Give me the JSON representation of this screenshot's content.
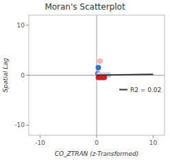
{
  "chart_data": {
    "type": "scatter",
    "title": "Moran's Scatterplot",
    "x_label": "CO_ZTRAN (z-Transformed)",
    "y_label": "Spatial Lag",
    "xlim": [
      -12,
      12
    ],
    "ylim": [
      -12,
      12
    ],
    "xticks": [
      -10,
      0,
      10
    ],
    "yticks": [
      -10,
      0,
      10
    ],
    "legend": "right",
    "reference_lines": {
      "x": 0,
      "y": 0
    },
    "series": [
      {
        "type": "scatter",
        "x": [
          0.6,
          0.3,
          0.2,
          0.5,
          0.9,
          1.3,
          1.7,
          2.1,
          0.3,
          0.65,
          1.0,
          1.35
        ],
        "values": [
          2.8,
          1.5,
          0.3,
          0.1,
          0.05,
          0.05,
          0.05,
          0.05,
          -0.45,
          -0.45,
          -0.45,
          -0.45
        ],
        "colors": [
          "#ffb3b3",
          "#3a6fc4",
          "#5580c8",
          "#c8cede",
          "#c8cede",
          "#c8cede",
          "#c8cede",
          "#c8cede",
          "#cc2222",
          "#cc2222",
          "#cc2222",
          "#cc2222"
        ]
      },
      {
        "type": "line",
        "name": "R2 = 0.02",
        "x": [
          0.0,
          10.0
        ],
        "values": [
          0.0,
          0.18
        ],
        "color": "#333333"
      }
    ]
  }
}
